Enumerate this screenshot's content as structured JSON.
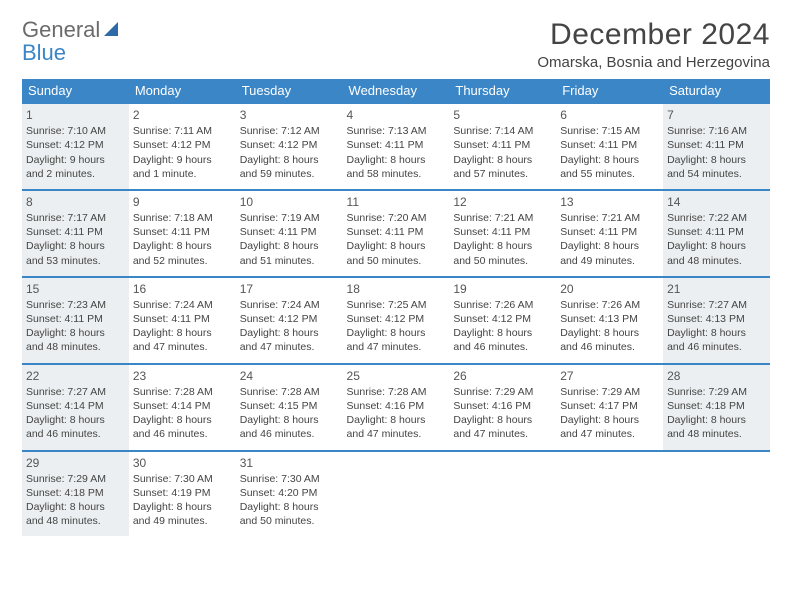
{
  "brand": {
    "line1": "General",
    "line2": "Blue"
  },
  "title": "December 2024",
  "location": "Omarska, Bosnia and Herzegovina",
  "colors": {
    "header_bg": "#3b86c6",
    "header_text": "#ffffff",
    "row_border": "#3b86c6",
    "shade_bg": "#eceff1",
    "text": "#444444",
    "logo_gray": "#6b6b6b",
    "logo_blue": "#3b86c6"
  },
  "typography": {
    "title_fontsize": 30,
    "location_fontsize": 15,
    "dayhead_fontsize": 13,
    "cell_fontsize": 10.5
  },
  "day_headers": [
    "Sunday",
    "Monday",
    "Tuesday",
    "Wednesday",
    "Thursday",
    "Friday",
    "Saturday"
  ],
  "weeks": [
    [
      {
        "n": "1",
        "sr": "Sunrise: 7:10 AM",
        "ss": "Sunset: 4:12 PM",
        "dl": "Daylight: 9 hours and 2 minutes.",
        "shade": true
      },
      {
        "n": "2",
        "sr": "Sunrise: 7:11 AM",
        "ss": "Sunset: 4:12 PM",
        "dl": "Daylight: 9 hours and 1 minute.",
        "shade": false
      },
      {
        "n": "3",
        "sr": "Sunrise: 7:12 AM",
        "ss": "Sunset: 4:12 PM",
        "dl": "Daylight: 8 hours and 59 minutes.",
        "shade": false
      },
      {
        "n": "4",
        "sr": "Sunrise: 7:13 AM",
        "ss": "Sunset: 4:11 PM",
        "dl": "Daylight: 8 hours and 58 minutes.",
        "shade": false
      },
      {
        "n": "5",
        "sr": "Sunrise: 7:14 AM",
        "ss": "Sunset: 4:11 PM",
        "dl": "Daylight: 8 hours and 57 minutes.",
        "shade": false
      },
      {
        "n": "6",
        "sr": "Sunrise: 7:15 AM",
        "ss": "Sunset: 4:11 PM",
        "dl": "Daylight: 8 hours and 55 minutes.",
        "shade": false
      },
      {
        "n": "7",
        "sr": "Sunrise: 7:16 AM",
        "ss": "Sunset: 4:11 PM",
        "dl": "Daylight: 8 hours and 54 minutes.",
        "shade": true
      }
    ],
    [
      {
        "n": "8",
        "sr": "Sunrise: 7:17 AM",
        "ss": "Sunset: 4:11 PM",
        "dl": "Daylight: 8 hours and 53 minutes.",
        "shade": true
      },
      {
        "n": "9",
        "sr": "Sunrise: 7:18 AM",
        "ss": "Sunset: 4:11 PM",
        "dl": "Daylight: 8 hours and 52 minutes.",
        "shade": false
      },
      {
        "n": "10",
        "sr": "Sunrise: 7:19 AM",
        "ss": "Sunset: 4:11 PM",
        "dl": "Daylight: 8 hours and 51 minutes.",
        "shade": false
      },
      {
        "n": "11",
        "sr": "Sunrise: 7:20 AM",
        "ss": "Sunset: 4:11 PM",
        "dl": "Daylight: 8 hours and 50 minutes.",
        "shade": false
      },
      {
        "n": "12",
        "sr": "Sunrise: 7:21 AM",
        "ss": "Sunset: 4:11 PM",
        "dl": "Daylight: 8 hours and 50 minutes.",
        "shade": false
      },
      {
        "n": "13",
        "sr": "Sunrise: 7:21 AM",
        "ss": "Sunset: 4:11 PM",
        "dl": "Daylight: 8 hours and 49 minutes.",
        "shade": false
      },
      {
        "n": "14",
        "sr": "Sunrise: 7:22 AM",
        "ss": "Sunset: 4:11 PM",
        "dl": "Daylight: 8 hours and 48 minutes.",
        "shade": true
      }
    ],
    [
      {
        "n": "15",
        "sr": "Sunrise: 7:23 AM",
        "ss": "Sunset: 4:11 PM",
        "dl": "Daylight: 8 hours and 48 minutes.",
        "shade": true
      },
      {
        "n": "16",
        "sr": "Sunrise: 7:24 AM",
        "ss": "Sunset: 4:11 PM",
        "dl": "Daylight: 8 hours and 47 minutes.",
        "shade": false
      },
      {
        "n": "17",
        "sr": "Sunrise: 7:24 AM",
        "ss": "Sunset: 4:12 PM",
        "dl": "Daylight: 8 hours and 47 minutes.",
        "shade": false
      },
      {
        "n": "18",
        "sr": "Sunrise: 7:25 AM",
        "ss": "Sunset: 4:12 PM",
        "dl": "Daylight: 8 hours and 47 minutes.",
        "shade": false
      },
      {
        "n": "19",
        "sr": "Sunrise: 7:26 AM",
        "ss": "Sunset: 4:12 PM",
        "dl": "Daylight: 8 hours and 46 minutes.",
        "shade": false
      },
      {
        "n": "20",
        "sr": "Sunrise: 7:26 AM",
        "ss": "Sunset: 4:13 PM",
        "dl": "Daylight: 8 hours and 46 minutes.",
        "shade": false
      },
      {
        "n": "21",
        "sr": "Sunrise: 7:27 AM",
        "ss": "Sunset: 4:13 PM",
        "dl": "Daylight: 8 hours and 46 minutes.",
        "shade": true
      }
    ],
    [
      {
        "n": "22",
        "sr": "Sunrise: 7:27 AM",
        "ss": "Sunset: 4:14 PM",
        "dl": "Daylight: 8 hours and 46 minutes.",
        "shade": true
      },
      {
        "n": "23",
        "sr": "Sunrise: 7:28 AM",
        "ss": "Sunset: 4:14 PM",
        "dl": "Daylight: 8 hours and 46 minutes.",
        "shade": false
      },
      {
        "n": "24",
        "sr": "Sunrise: 7:28 AM",
        "ss": "Sunset: 4:15 PM",
        "dl": "Daylight: 8 hours and 46 minutes.",
        "shade": false
      },
      {
        "n": "25",
        "sr": "Sunrise: 7:28 AM",
        "ss": "Sunset: 4:16 PM",
        "dl": "Daylight: 8 hours and 47 minutes.",
        "shade": false
      },
      {
        "n": "26",
        "sr": "Sunrise: 7:29 AM",
        "ss": "Sunset: 4:16 PM",
        "dl": "Daylight: 8 hours and 47 minutes.",
        "shade": false
      },
      {
        "n": "27",
        "sr": "Sunrise: 7:29 AM",
        "ss": "Sunset: 4:17 PM",
        "dl": "Daylight: 8 hours and 47 minutes.",
        "shade": false
      },
      {
        "n": "28",
        "sr": "Sunrise: 7:29 AM",
        "ss": "Sunset: 4:18 PM",
        "dl": "Daylight: 8 hours and 48 minutes.",
        "shade": true
      }
    ],
    [
      {
        "n": "29",
        "sr": "Sunrise: 7:29 AM",
        "ss": "Sunset: 4:18 PM",
        "dl": "Daylight: 8 hours and 48 minutes.",
        "shade": true
      },
      {
        "n": "30",
        "sr": "Sunrise: 7:30 AM",
        "ss": "Sunset: 4:19 PM",
        "dl": "Daylight: 8 hours and 49 minutes.",
        "shade": false
      },
      {
        "n": "31",
        "sr": "Sunrise: 7:30 AM",
        "ss": "Sunset: 4:20 PM",
        "dl": "Daylight: 8 hours and 50 minutes.",
        "shade": false
      },
      {
        "n": "",
        "sr": "",
        "ss": "",
        "dl": "",
        "shade": false
      },
      {
        "n": "",
        "sr": "",
        "ss": "",
        "dl": "",
        "shade": false
      },
      {
        "n": "",
        "sr": "",
        "ss": "",
        "dl": "",
        "shade": false
      },
      {
        "n": "",
        "sr": "",
        "ss": "",
        "dl": "",
        "shade": false
      }
    ]
  ]
}
